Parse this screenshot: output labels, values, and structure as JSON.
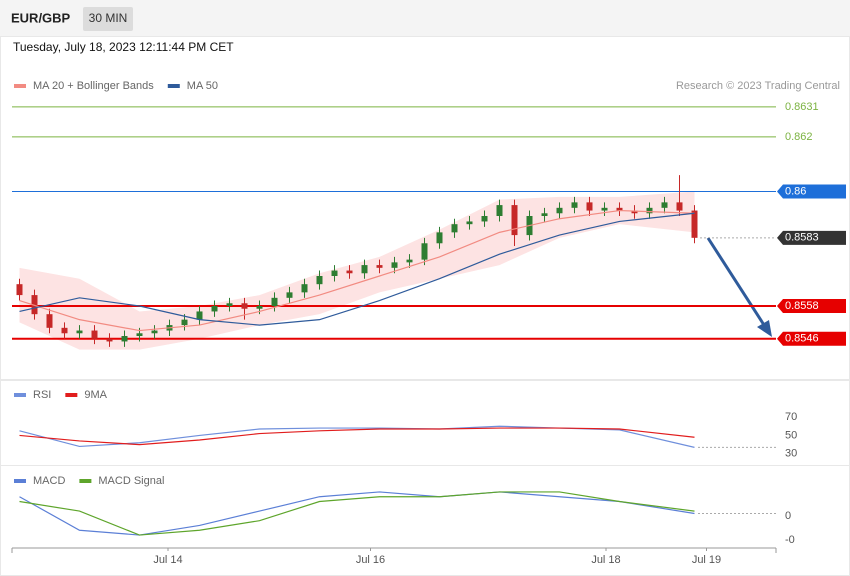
{
  "header": {
    "symbol": "EUR/GBP",
    "interval": "30 MIN",
    "timestamp": "Tuesday, July 18, 2023 12:11:44 PM CET"
  },
  "chart_data": [
    {
      "type": "candlestick",
      "source": "Research © 2023 Trading Central",
      "xlim": [
        -0.5,
        50.5
      ],
      "ylim": [
        0.85316,
        0.8657
      ],
      "x": [
        0,
        1,
        2,
        3,
        4,
        5,
        6,
        7,
        8,
        9,
        10,
        11,
        12,
        13,
        14,
        15,
        16,
        17,
        18,
        19,
        20,
        21,
        22,
        23,
        24,
        25,
        26,
        27,
        28,
        29,
        30,
        31,
        32,
        33,
        34,
        35,
        36,
        37,
        38,
        39,
        40,
        41,
        42,
        43,
        44,
        45
      ],
      "open": [
        0.8566,
        0.8562,
        0.8555,
        0.855,
        0.8548,
        0.8549,
        0.8546,
        0.8545,
        0.8547,
        0.8548,
        0.8549,
        0.8551,
        0.8553,
        0.8556,
        0.8558,
        0.8559,
        0.8557,
        0.8558,
        0.8561,
        0.8563,
        0.8566,
        0.8569,
        0.8571,
        0.857,
        0.8573,
        0.8572,
        0.8574,
        0.8575,
        0.8581,
        0.8585,
        0.8588,
        0.8589,
        0.8591,
        0.8595,
        0.8584,
        0.8591,
        0.8592,
        0.8594,
        0.8596,
        0.8593,
        0.8594,
        0.8593,
        0.8592,
        0.8594,
        0.8596,
        0.8593
      ],
      "high": [
        0.8568,
        0.8564,
        0.8557,
        0.8552,
        0.8551,
        0.8551,
        0.8548,
        0.8549,
        0.855,
        0.8551,
        0.8553,
        0.8555,
        0.8558,
        0.856,
        0.8561,
        0.8561,
        0.856,
        0.8563,
        0.8565,
        0.8568,
        0.8571,
        0.8573,
        0.8573,
        0.8575,
        0.8575,
        0.8576,
        0.8577,
        0.8583,
        0.8587,
        0.859,
        0.8591,
        0.8593,
        0.8597,
        0.8597,
        0.8593,
        0.8594,
        0.8596,
        0.8598,
        0.8598,
        0.8596,
        0.8596,
        0.8595,
        0.8596,
        0.8598,
        0.8606,
        0.8595
      ],
      "low": [
        0.856,
        0.8553,
        0.8548,
        0.8546,
        0.8546,
        0.8544,
        0.8543,
        0.8543,
        0.8545,
        0.8546,
        0.8547,
        0.8549,
        0.8551,
        0.8554,
        0.8556,
        0.8553,
        0.8555,
        0.8556,
        0.8559,
        0.8561,
        0.8564,
        0.8567,
        0.8568,
        0.8568,
        0.857,
        0.857,
        0.8572,
        0.8573,
        0.8579,
        0.8583,
        0.8586,
        0.8587,
        0.8589,
        0.858,
        0.8582,
        0.8589,
        0.859,
        0.8592,
        0.8591,
        0.8591,
        0.8591,
        0.859,
        0.859,
        0.8592,
        0.8591,
        0.8581
      ],
      "close": [
        0.8562,
        0.8555,
        0.855,
        0.8548,
        0.8549,
        0.8546,
        0.8545,
        0.8547,
        0.8548,
        0.8549,
        0.8551,
        0.8553,
        0.8556,
        0.8558,
        0.8559,
        0.8557,
        0.8558,
        0.8561,
        0.8563,
        0.8566,
        0.8569,
        0.8571,
        0.857,
        0.8573,
        0.8572,
        0.8574,
        0.8575,
        0.8581,
        0.8585,
        0.8588,
        0.8589,
        0.8591,
        0.8595,
        0.8584,
        0.8591,
        0.8592,
        0.8594,
        0.8596,
        0.8593,
        0.8594,
        0.8593,
        0.8592,
        0.8594,
        0.8596,
        0.8593,
        0.8583
      ],
      "up_color": "#2e7d32",
      "down_color": "#c62828",
      "series": [
        {
          "name": "MA 20 + Bollinger Bands",
          "color": "#f28b82",
          "band_color": "#fde3e3",
          "x": [
            0,
            4,
            8,
            12,
            16,
            20,
            24,
            28,
            32,
            36,
            40,
            45
          ],
          "values": [
            0.856,
            0.8553,
            0.8549,
            0.8551,
            0.8556,
            0.8562,
            0.8569,
            0.8576,
            0.8585,
            0.859,
            0.8593,
            0.8592
          ],
          "upper": [
            0.8572,
            0.8568,
            0.8556,
            0.8558,
            0.8562,
            0.857,
            0.8576,
            0.8586,
            0.8597,
            0.8598,
            0.8598,
            0.86
          ],
          "lower": [
            0.8552,
            0.8542,
            0.8542,
            0.8546,
            0.8551,
            0.8555,
            0.8563,
            0.8568,
            0.8573,
            0.8583,
            0.8588,
            0.8585
          ]
        },
        {
          "name": "MA 50",
          "color": "#2f5b9b",
          "x": [
            0,
            4,
            8,
            12,
            16,
            20,
            24,
            28,
            32,
            36,
            40,
            45
          ],
          "values": [
            0.8556,
            0.8561,
            0.8558,
            0.8553,
            0.8551,
            0.8553,
            0.856,
            0.8568,
            0.8577,
            0.8584,
            0.8589,
            0.8592
          ]
        }
      ],
      "levels": [
        {
          "value": 0.8631,
          "color": "#7cb342",
          "width": 1,
          "style": "solid",
          "tag": false
        },
        {
          "value": 0.862,
          "color": "#7cb342",
          "width": 1,
          "style": "solid",
          "tag": false
        },
        {
          "value": 0.86,
          "color": "#1e6fd9",
          "width": 1,
          "style": "solid",
          "tag": true
        },
        {
          "value": 0.8583,
          "color": "#333333",
          "width": 1,
          "style": "dotted",
          "tag": true
        },
        {
          "value": 0.8558,
          "color": "#e60000",
          "width": 2,
          "style": "solid",
          "tag": true
        },
        {
          "value": 0.8546,
          "color": "#e60000",
          "width": 2,
          "style": "solid",
          "tag": true
        }
      ]
    },
    {
      "type": "line",
      "xlim": [
        -0.5,
        50.5
      ],
      "ylim": [
        20,
        107
      ],
      "yticks": [
        30,
        50,
        70
      ],
      "series": [
        {
          "name": "RSI",
          "color": "#6f8fdc",
          "x": [
            0,
            4,
            8,
            12,
            16,
            20,
            24,
            28,
            32,
            36,
            40,
            45
          ],
          "values": [
            55,
            38,
            42,
            50,
            57,
            58,
            58,
            57,
            60,
            58,
            56,
            37
          ]
        },
        {
          "name": "9MA",
          "color": "#e11d1d",
          "x": [
            0,
            4,
            8,
            12,
            16,
            20,
            24,
            28,
            32,
            36,
            40,
            45
          ],
          "values": [
            50,
            44,
            40,
            45,
            52,
            55,
            57,
            57,
            58,
            58,
            57,
            48
          ]
        }
      ]
    },
    {
      "type": "line",
      "xlim": [
        -0.5,
        50.5
      ],
      "ylim": [
        -0.00067,
        0.00102
      ],
      "yticks": [
        0,
        {
          "value": -0.0005,
          "label": "-0"
        }
      ],
      "xticks": [
        {
          "value": 9.9,
          "label": "Jul 14"
        },
        {
          "value": 23.4,
          "label": "Jul 16"
        },
        {
          "value": 39.1,
          "label": "Jul 18"
        },
        {
          "value": 45.8,
          "label": "Jul 19"
        }
      ],
      "series": [
        {
          "name": "MACD",
          "color": "#5b7fd6",
          "x": [
            0,
            4,
            8,
            12,
            16,
            20,
            24,
            28,
            32,
            36,
            40,
            45
          ],
          "values": [
            0.0004,
            -0.0003,
            -0.0004,
            -0.0002,
            0.0001,
            0.0004,
            0.0005,
            0.0004,
            0.0005,
            0.0004,
            0.0003,
            5e-05
          ]
        },
        {
          "name": "MACD Signal",
          "color": "#5ea52b",
          "x": [
            0,
            4,
            8,
            12,
            16,
            20,
            24,
            28,
            32,
            36,
            40,
            45
          ],
          "values": [
            0.0003,
            0.0001,
            -0.0004,
            -0.0003,
            -0.0001,
            0.0003,
            0.0004,
            0.0004,
            0.0005,
            0.0005,
            0.0003,
            0.0001
          ]
        }
      ]
    }
  ]
}
